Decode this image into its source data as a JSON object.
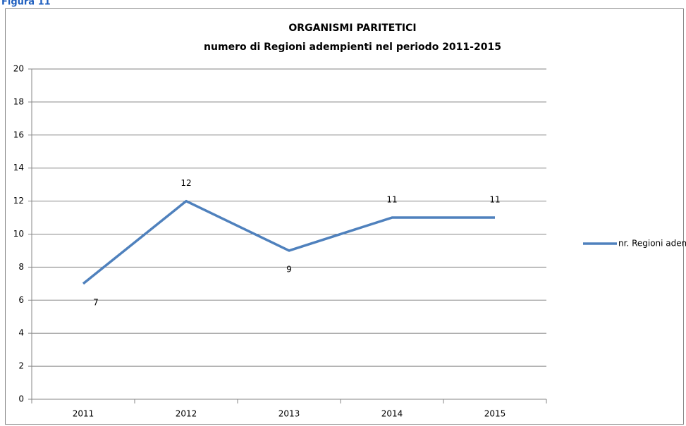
{
  "chart_data": {
    "type": "line",
    "caption": "Figura 11",
    "title": "ORGANISMI PARITETICI",
    "subtitle": "numero di Regioni adempienti nel periodo 2011-2015",
    "categories": [
      "2011",
      "2012",
      "2013",
      "2014",
      "2015"
    ],
    "series": [
      {
        "name": "nr. Regioni adempienti",
        "color": "#4f81bd",
        "values": [
          7,
          12,
          9,
          11,
          11
        ]
      }
    ],
    "ylim": [
      0,
      20
    ],
    "yticks": [
      0,
      2,
      4,
      6,
      8,
      10,
      12,
      14,
      16,
      18,
      20
    ],
    "grid": true,
    "legend": "right",
    "data_labels": true
  }
}
